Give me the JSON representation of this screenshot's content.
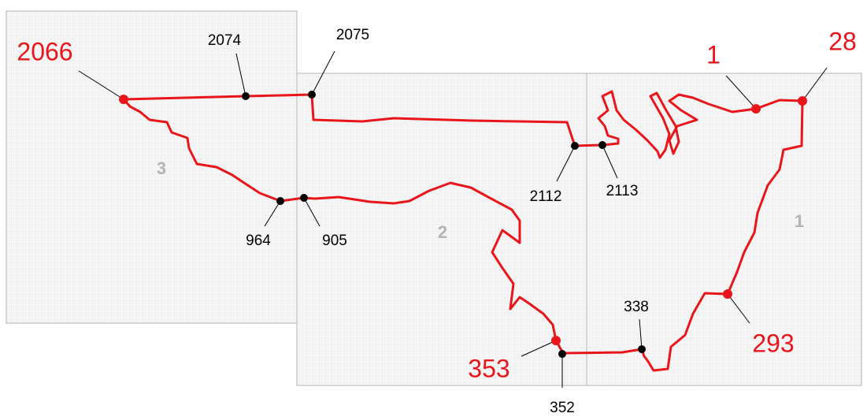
{
  "panels": [
    {
      "label": "3"
    },
    {
      "label": "2"
    },
    {
      "label": "1"
    }
  ],
  "points": [
    {
      "label": "2066",
      "color": "#e8161b"
    },
    {
      "label": "2074",
      "color": "#000000"
    },
    {
      "label": "2075",
      "color": "#000000"
    },
    {
      "label": "2112",
      "color": "#000000"
    },
    {
      "label": "2113",
      "color": "#000000"
    },
    {
      "label": "964",
      "color": "#000000"
    },
    {
      "label": "905",
      "color": "#000000"
    },
    {
      "label": "338",
      "color": "#000000"
    },
    {
      "label": "352",
      "color": "#000000"
    },
    {
      "label": "1",
      "color": "#e8161b"
    },
    {
      "label": "28",
      "color": "#e8161b"
    },
    {
      "label": "293",
      "color": "#e8161b"
    },
    {
      "label": "353",
      "color": "#e8161b"
    }
  ]
}
